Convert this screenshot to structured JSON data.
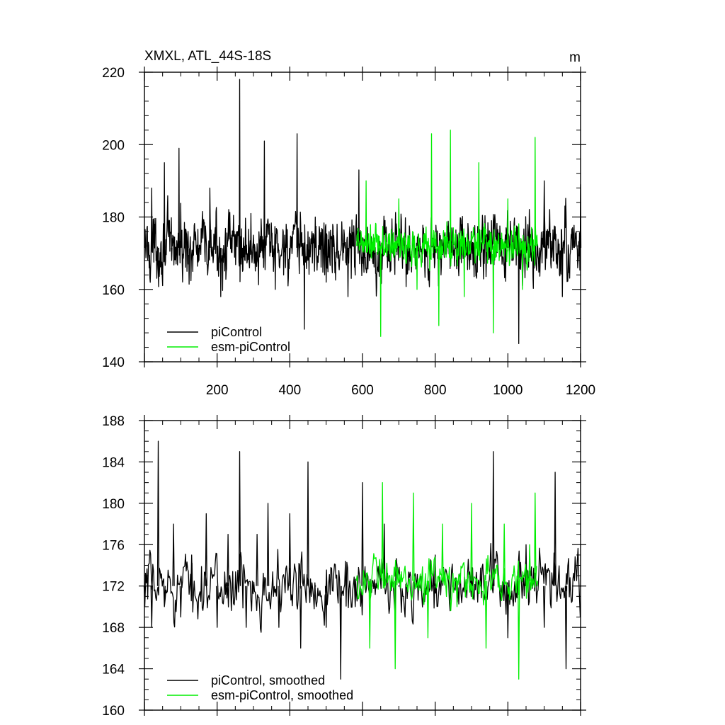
{
  "chart_data": [
    {
      "type": "line",
      "title": "XMXL, ATL_44S-18S",
      "units": "m",
      "xlim": [
        0,
        1200
      ],
      "ylim": [
        140,
        220
      ],
      "x_ticks": [
        200,
        400,
        600,
        800,
        1000,
        1200
      ],
      "y_ticks": [
        140,
        160,
        180,
        200,
        220
      ],
      "legend_position": "bottom-left",
      "series": [
        {
          "name": "piControl",
          "color": "#000000",
          "x_start": 1,
          "x_step": 1,
          "approx_mean": 171.5,
          "approx_range": [
            144,
            218
          ],
          "points": [
            [
              1,
              176
            ],
            [
              20,
              188
            ],
            [
              38,
              166
            ],
            [
              55,
              195
            ],
            [
              75,
              168
            ],
            [
              95,
              199
            ],
            [
              120,
              176
            ],
            [
              150,
              168
            ],
            [
              180,
              188
            ],
            [
              210,
              158
            ],
            [
              240,
              175
            ],
            [
              262,
              218
            ],
            [
              270,
              165
            ],
            [
              300,
              175
            ],
            [
              330,
              201
            ],
            [
              360,
              160
            ],
            [
              390,
              178
            ],
            [
              420,
              203
            ],
            [
              440,
              149
            ],
            [
              470,
              180
            ],
            [
              500,
              162
            ],
            [
              530,
              178
            ],
            [
              560,
              158
            ],
            [
              590,
              193
            ],
            [
              620,
              170
            ],
            [
              700,
              175
            ],
            [
              800,
              172
            ],
            [
              900,
              176
            ],
            [
              1000,
              173
            ],
            [
              1030,
              145
            ],
            [
              1060,
              178
            ],
            [
              1100,
              190
            ],
            [
              1150,
              158
            ],
            [
              1200,
              189
            ]
          ]
        },
        {
          "name": "esm-piControl",
          "color": "#00ee00",
          "x_start": 585,
          "x_end": 1080,
          "x_step": 1,
          "approx_mean": 172,
          "approx_range": [
            147,
            204
          ],
          "points": [
            [
              585,
              175
            ],
            [
              610,
              190
            ],
            [
              650,
              147
            ],
            [
              700,
              185
            ],
            [
              750,
              160
            ],
            [
              790,
              203
            ],
            [
              810,
              150
            ],
            [
              842,
              204
            ],
            [
              880,
              158
            ],
            [
              920,
              195
            ],
            [
              960,
              148
            ],
            [
              1000,
              185
            ],
            [
              1040,
              160
            ],
            [
              1075,
              202
            ],
            [
              1080,
              175
            ]
          ]
        }
      ]
    },
    {
      "type": "line",
      "ylim": [
        160,
        188
      ],
      "y_ticks": [
        160,
        164,
        168,
        172,
        176,
        180,
        184,
        188
      ],
      "xlim": [
        0,
        1200
      ],
      "x_ticks": [
        200,
        400,
        600,
        800,
        1000,
        1200
      ],
      "legend_position": "bottom-left",
      "series": [
        {
          "name": "piControl, smoothed",
          "color": "#000000",
          "x_start": 1,
          "x_step": 2,
          "approx_mean": 172,
          "approx_range": [
            163,
            186
          ],
          "points": [
            [
              1,
              170
            ],
            [
              20,
              168
            ],
            [
              38,
              186
            ],
            [
              55,
              170
            ],
            [
              80,
              178
            ],
            [
              100,
              169
            ],
            [
              130,
              175
            ],
            [
              170,
              179
            ],
            [
              200,
              168
            ],
            [
              230,
              177
            ],
            [
              262,
              185
            ],
            [
              280,
              168
            ],
            [
              310,
              177
            ],
            [
              340,
              180
            ],
            [
              370,
              168
            ],
            [
              400,
              179
            ],
            [
              430,
              166
            ],
            [
              450,
              184
            ],
            [
              470,
              172
            ],
            [
              500,
              168
            ],
            [
              540,
              163
            ],
            [
              580,
              170
            ],
            [
              600,
              182
            ],
            [
              630,
              172
            ],
            [
              660,
              178
            ],
            [
              700,
              172
            ],
            [
              800,
              175
            ],
            [
              900,
              173
            ],
            [
              960,
              185
            ],
            [
              1000,
              167
            ],
            [
              1050,
              176
            ],
            [
              1100,
              168
            ],
            [
              1130,
              183
            ],
            [
              1160,
              164
            ],
            [
              1200,
              172
            ]
          ]
        },
        {
          "name": "esm-piControl, smoothed",
          "color": "#00ee00",
          "x_start": 585,
          "x_end": 1080,
          "x_step": 2,
          "approx_mean": 172.5,
          "approx_range": [
            163,
            182
          ],
          "points": [
            [
              585,
              173
            ],
            [
              620,
              166
            ],
            [
              655,
              182
            ],
            [
              690,
              164
            ],
            [
              740,
              181
            ],
            [
              780,
              167
            ],
            [
              820,
              178
            ],
            [
              860,
              170
            ],
            [
              900,
              180
            ],
            [
              940,
              166
            ],
            [
              990,
              178
            ],
            [
              1030,
              163
            ],
            [
              1060,
              176
            ],
            [
              1075,
              181
            ],
            [
              1080,
              172
            ]
          ]
        }
      ]
    }
  ]
}
